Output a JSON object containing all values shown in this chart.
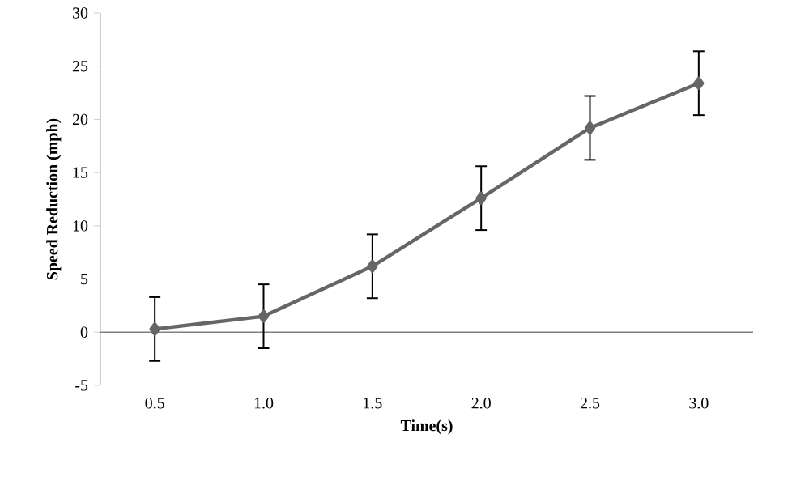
{
  "chart_data": {
    "type": "line",
    "xlabel": "Time(s)",
    "ylabel": "Speed Reduction (mph)",
    "categories": [
      "0.5",
      "1.0",
      "1.5",
      "2.0",
      "2.5",
      "3.0"
    ],
    "values": [
      0.3,
      1.5,
      6.2,
      12.6,
      19.2,
      23.4
    ],
    "errors": [
      3,
      3,
      3,
      3,
      3,
      3
    ],
    "color": "#666666",
    "marker": "diamond",
    "line_style": "solid",
    "ylim": [
      -5,
      30
    ],
    "yticks": [
      -5,
      0,
      5,
      10,
      15,
      20,
      25,
      30
    ]
  }
}
